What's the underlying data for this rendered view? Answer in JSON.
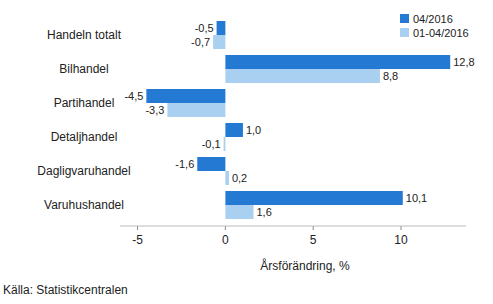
{
  "chart_data": {
    "type": "bar",
    "orientation": "horizontal",
    "categories": [
      "Handeln totalt",
      "Bilhandel",
      "Partihandel",
      "Detaljhandel",
      "Dagligvaruhandel",
      "Varuhushandel"
    ],
    "series": [
      {
        "name": "04/2016",
        "color": "#2479d2",
        "values": [
          -0.5,
          12.8,
          -4.5,
          1.0,
          -1.6,
          10.1
        ],
        "value_labels": [
          "-0,5",
          "12,8",
          "-4,5",
          "1,0",
          "-1,6",
          "10,1"
        ]
      },
      {
        "name": "01-04/2016",
        "color": "#a9cff1",
        "values": [
          -0.7,
          8.8,
          -3.3,
          -0.1,
          0.2,
          1.6
        ],
        "value_labels": [
          "-0,7",
          "8,8",
          "-3,3",
          "-0,1",
          "0,2",
          "1,6"
        ]
      }
    ],
    "xlim": [
      -6,
      13.7
    ],
    "xticks": [
      -5,
      0,
      5,
      10
    ],
    "x_label": "Årsförändring, %",
    "source": "Källa: Statistikcentralen",
    "legend": "top-right",
    "grid": false,
    "data_labels": true
  }
}
